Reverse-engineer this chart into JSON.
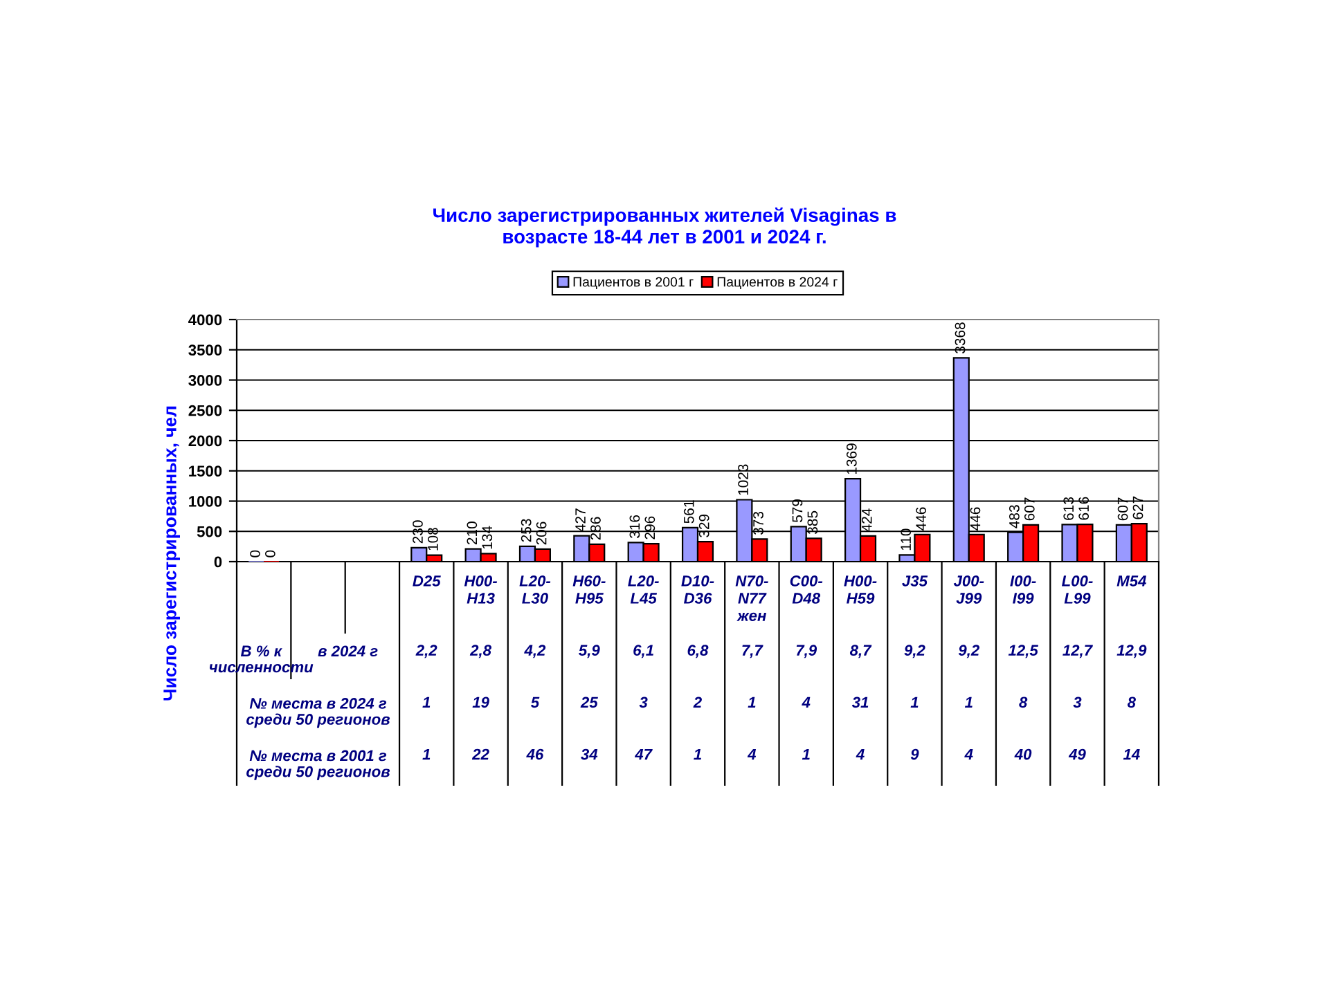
{
  "chart_data": {
    "type": "bar",
    "title": "Число зарегистрированных жителей Visaginas в\nвозрасте 18-44 лет в 2001 и 2024 г.",
    "ylabel": "Число зарегистрированных, чел",
    "categories": [
      null,
      null,
      null,
      "D25\n\n\n\n2,2\n\n\n1\n\n\n1",
      "H00-\nH13\n\n\n2,8\n\n\n19\n\n\n22",
      "L20-\nL30\n\n\n4,2\n\n\n5\n\n\n46",
      "H60-\nH95\n\n\n5,9\n\n\n25\n\n\n34",
      "L20-\nL45\n\n\n6,1\n\n\n3\n\n\n47",
      "D10-\nD36\n\n\n6,8\n\n\n2\n\n\n1",
      "N70-\nN77\nжен\n\n7,7\n\n\n1\n\n\n4",
      "C00-\nD48\n\n\n7,9\n\n\n4\n\n\n1",
      "H00-\nH59\n\n\n8,7\n\n\n31\n\n\n4",
      "J35\n\n\n\n9,2\n\n\n1\n\n\n9",
      "J00-\nJ99\n\n\n9,2\n\n\n1\n\n\n4",
      "I00-\nI99\n\n\n12,5\n\n\n8\n\n\n40",
      "L00-\nL99\n\n\n12,7\n\n\n3\n\n\n49",
      "M54\n\n\n\n12,9\n\n\n8\n\n\n14"
    ],
    "series": [
      {
        "name": "Пациентов в 2001 г",
        "color": "#9999ff",
        "values": [
          0,
          null,
          null,
          230,
          210,
          253,
          427,
          316,
          561,
          1023,
          579,
          1369,
          110,
          3368,
          483,
          613,
          607
        ]
      },
      {
        "name": "Пациентов в 2024 г",
        "color": "#ff0000",
        "values": [
          0,
          null,
          null,
          108,
          134,
          206,
          286,
          296,
          329,
          373,
          385,
          424,
          446,
          446,
          607,
          616,
          627
        ]
      }
    ],
    "ylim": [
      0,
      4000
    ],
    "yticks": [
      0,
      500,
      1000,
      1500,
      2000,
      2500,
      3000,
      3500,
      4000
    ],
    "grid": "y",
    "legend": "top",
    "data_labels": true,
    "annotations": [
      "В % к\nчисленности",
      "в 2024 г",
      "№ места в 2024 г\nсреди 50 регионов",
      "№ места в 2001 г\nсреди 50 регионов"
    ]
  }
}
